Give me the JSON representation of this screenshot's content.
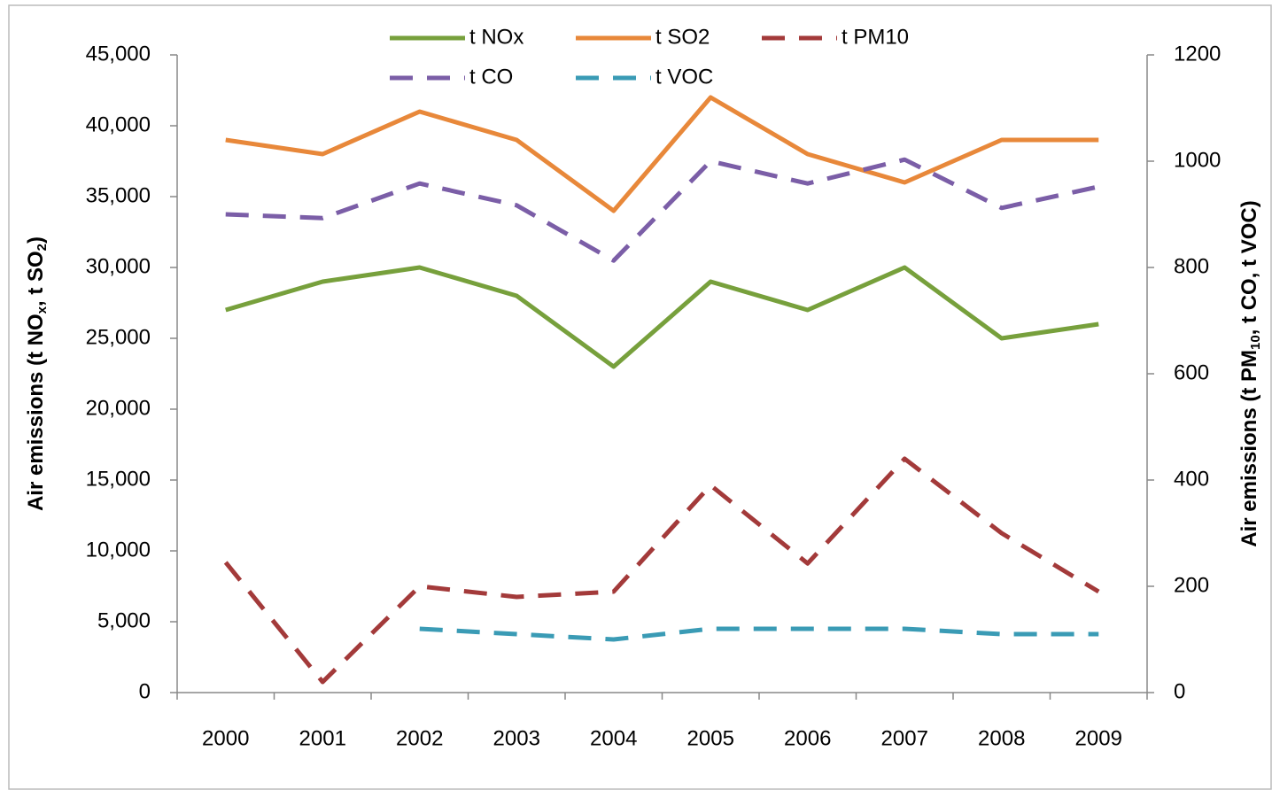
{
  "chart_data": {
    "type": "line",
    "ylabel": [
      "Air emissions (t NO",
      "x",
      ", t SO",
      "2",
      ")"
    ],
    "y2label": [
      "Air emissions (t PM",
      "10",
      ", t CO, t VOC)"
    ],
    "categories": [
      "2000",
      "2001",
      "2002",
      "2003",
      "2004",
      "2005",
      "2006",
      "2007",
      "2008",
      "2009"
    ],
    "ylim": [
      0,
      45000
    ],
    "yticks": [
      0,
      {
        "value": 5000,
        "label": "5,000"
      },
      {
        "value": 10000,
        "label": "10,000"
      },
      {
        "value": 15000,
        "label": "15,000"
      },
      {
        "value": 20000,
        "label": "20,000"
      },
      {
        "value": 25000,
        "label": "25,000"
      },
      {
        "value": 30000,
        "label": "30,000"
      },
      {
        "value": 35000,
        "label": "35,000"
      },
      {
        "value": 40000,
        "label": "40,000"
      },
      {
        "value": 45000,
        "label": "45,000"
      }
    ],
    "y2lim": [
      0,
      1200
    ],
    "y2ticks": [
      0,
      200,
      400,
      600,
      800,
      1000,
      1200
    ],
    "legend": "top",
    "series": [
      {
        "name": "t NOx",
        "color": "#77a03c",
        "style": "solid",
        "values": [
          27000,
          29000,
          30000,
          28000,
          23000,
          29000,
          27000,
          30000,
          25000,
          26000
        ]
      },
      {
        "name": "t SO2",
        "color": "#e8883a",
        "style": "solid",
        "values": [
          39000,
          38000,
          41000,
          39000,
          34000,
          42000,
          38000,
          36000,
          39000,
          39000
        ]
      },
      {
        "name": "t PM10",
        "color": "#a33a3a",
        "style": "dashed",
        "axis": "y2",
        "values": [
          245,
          20,
          200,
          180,
          190,
          390,
          243,
          440,
          300,
          190
        ]
      },
      {
        "name": "t CO",
        "color": "#7b5ea7",
        "style": "dashed",
        "axis": "y2",
        "values": [
          900,
          893,
          958,
          917,
          813,
          1000,
          958,
          1003,
          912,
          952
        ]
      },
      {
        "name": "t VOC",
        "color": "#3a9bb5",
        "style": "dashed",
        "axis": "y2",
        "values": [
          null,
          null,
          120,
          110,
          100,
          120,
          120,
          120,
          110,
          110
        ]
      }
    ]
  }
}
